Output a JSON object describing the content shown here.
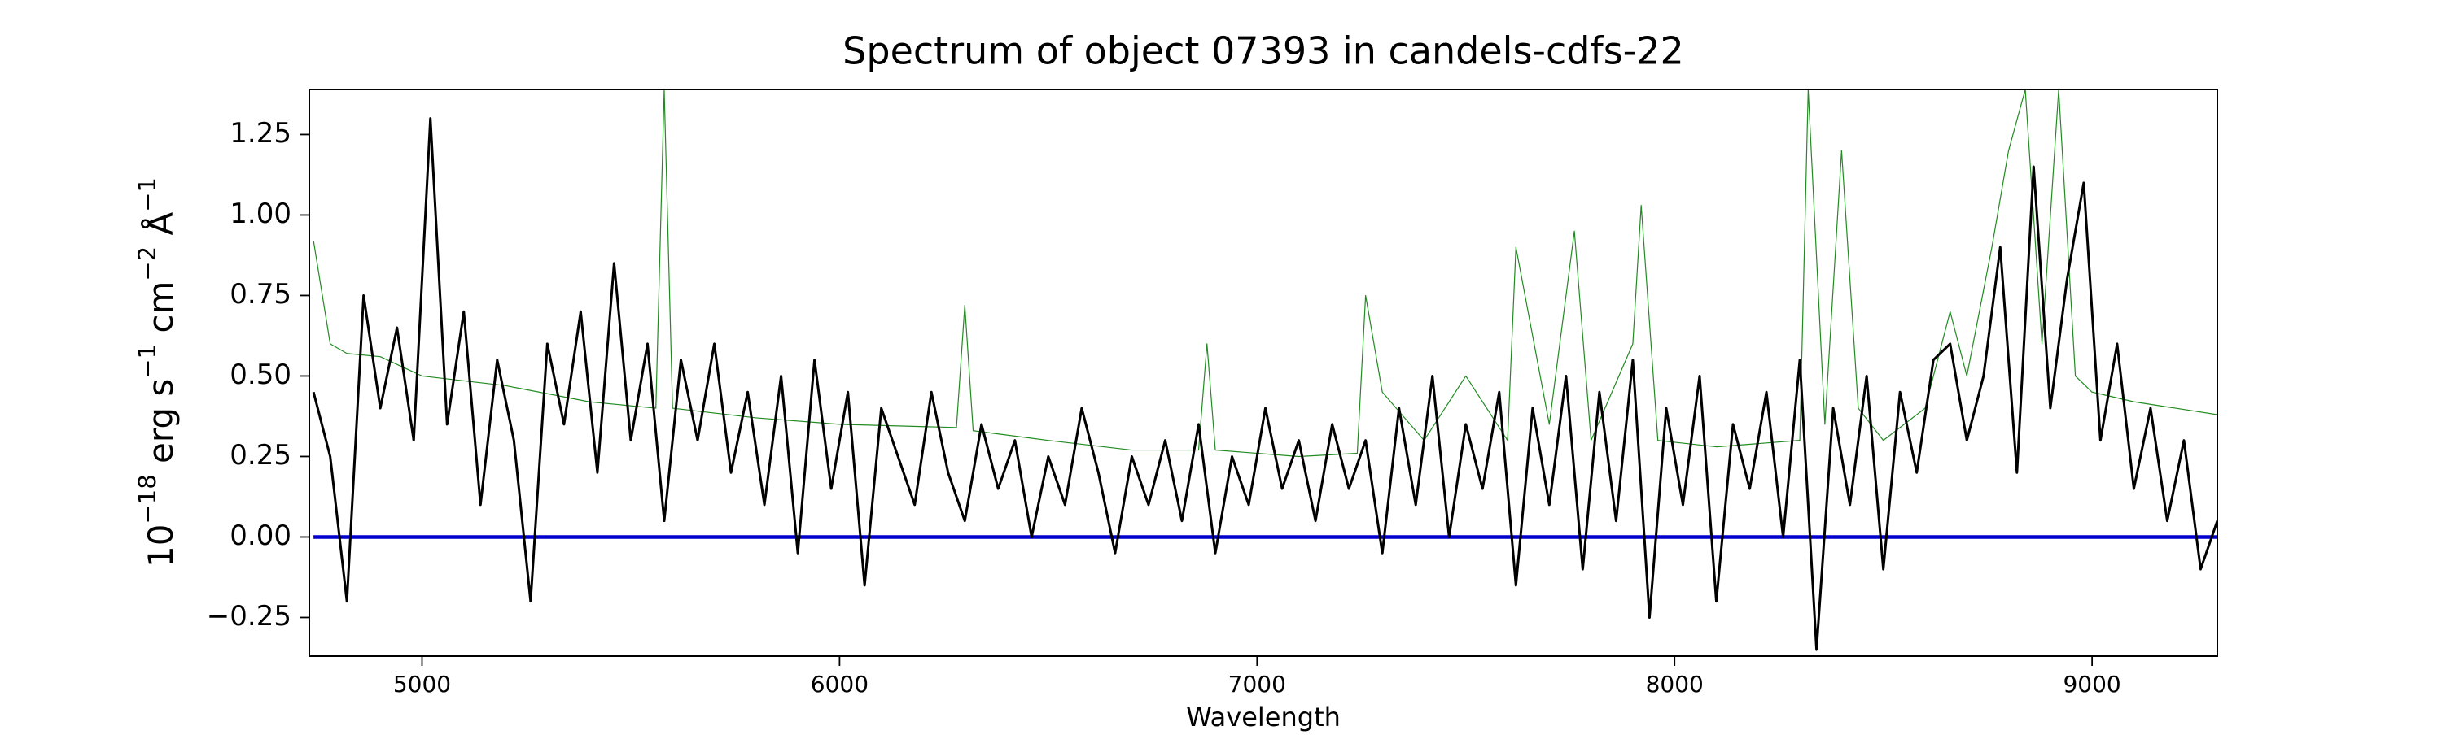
{
  "chart_data": {
    "type": "line",
    "title": "Spectrum of object 07393 in candels-cdfs-22",
    "xlabel": "Wavelength",
    "ylabel": [
      "10",
      "−18",
      " erg s",
      "−1",
      " cm",
      "−2",
      " Å",
      "−1"
    ],
    "xlim": [
      4730,
      9300
    ],
    "xticks": [
      5000,
      6000,
      7000,
      8000,
      9000
    ],
    "ylim": [
      -0.37,
      1.39
    ],
    "yticks": [
      {
        "value": -0.25,
        "label": "−0.25"
      },
      {
        "value": 0,
        "label": "0.00"
      },
      0.25,
      {
        "value": 0.5,
        "label": "0.50"
      },
      0.75,
      {
        "value": 1,
        "label": "1.00"
      },
      1.25
    ],
    "series": [
      {
        "color": "#228b22",
        "x": [
          4740,
          4780,
          4820,
          4900,
          5000,
          5200,
          5400,
          5560,
          5580,
          5600,
          5800,
          6000,
          6280,
          6300,
          6320,
          6500,
          6700,
          6860,
          6880,
          6900,
          7100,
          7240,
          7260,
          7300,
          7400,
          7500,
          7600,
          7620,
          7700,
          7760,
          7800,
          7900,
          7920,
          7960,
          8100,
          8300,
          8320,
          8360,
          8400,
          8440,
          8500,
          8600,
          8660,
          8700,
          8760,
          8800,
          8840,
          8880,
          8920,
          8960,
          9000,
          9100,
          9200,
          9300
        ],
        "values": [
          0.92,
          0.6,
          0.57,
          0.56,
          0.5,
          0.47,
          0.42,
          0.4,
          1.39,
          0.4,
          0.37,
          0.35,
          0.34,
          0.72,
          0.33,
          0.3,
          0.27,
          0.27,
          0.6,
          0.27,
          0.25,
          0.26,
          0.75,
          0.45,
          0.3,
          0.5,
          0.3,
          0.9,
          0.35,
          0.95,
          0.3,
          0.6,
          1.03,
          0.3,
          0.28,
          0.3,
          1.39,
          0.35,
          1.2,
          0.4,
          0.3,
          0.4,
          0.7,
          0.5,
          0.9,
          1.2,
          1.39,
          0.6,
          1.39,
          0.5,
          0.45,
          0.42,
          0.4,
          0.38
        ]
      },
      {
        "color": "#0000cd",
        "x": [
          4740,
          9300
        ],
        "values": [
          0,
          0
        ]
      },
      {
        "color": "#000000",
        "x": [
          4740,
          4780,
          4820,
          4860,
          4900,
          4940,
          4980,
          5020,
          5060,
          5100,
          5140,
          5180,
          5220,
          5260,
          5300,
          5340,
          5380,
          5420,
          5460,
          5500,
          5540,
          5580,
          5620,
          5660,
          5700,
          5740,
          5780,
          5820,
          5860,
          5900,
          5940,
          5980,
          6020,
          6060,
          6100,
          6140,
          6180,
          6220,
          6260,
          6300,
          6340,
          6380,
          6420,
          6460,
          6500,
          6540,
          6580,
          6620,
          6660,
          6700,
          6740,
          6780,
          6820,
          6860,
          6900,
          6940,
          6980,
          7020,
          7060,
          7100,
          7140,
          7180,
          7220,
          7260,
          7300,
          7340,
          7380,
          7420,
          7460,
          7500,
          7540,
          7580,
          7620,
          7660,
          7700,
          7740,
          7780,
          7820,
          7860,
          7900,
          7940,
          7980,
          8020,
          8060,
          8100,
          8140,
          8180,
          8220,
          8260,
          8300,
          8340,
          8380,
          8420,
          8460,
          8500,
          8540,
          8580,
          8620,
          8660,
          8700,
          8740,
          8780,
          8820,
          8860,
          8900,
          8940,
          8980,
          9020,
          9060,
          9100,
          9140,
          9180,
          9220,
          9260,
          9300
        ],
        "values": [
          0.45,
          0.25,
          -0.2,
          0.75,
          0.4,
          0.65,
          0.3,
          1.3,
          0.35,
          0.7,
          0.1,
          0.55,
          0.3,
          -0.2,
          0.6,
          0.35,
          0.7,
          0.2,
          0.85,
          0.3,
          0.6,
          0.05,
          0.55,
          0.3,
          0.6,
          0.2,
          0.45,
          0.1,
          0.5,
          -0.05,
          0.55,
          0.15,
          0.45,
          -0.15,
          0.4,
          0.25,
          0.1,
          0.45,
          0.2,
          0.05,
          0.35,
          0.15,
          0.3,
          0.0,
          0.25,
          0.1,
          0.4,
          0.2,
          -0.05,
          0.25,
          0.1,
          0.3,
          0.05,
          0.35,
          -0.05,
          0.25,
          0.1,
          0.4,
          0.15,
          0.3,
          0.05,
          0.35,
          0.15,
          0.3,
          -0.05,
          0.4,
          0.1,
          0.5,
          0.0,
          0.35,
          0.15,
          0.45,
          -0.15,
          0.4,
          0.1,
          0.5,
          -0.1,
          0.45,
          0.05,
          0.55,
          -0.25,
          0.4,
          0.1,
          0.5,
          -0.2,
          0.35,
          0.15,
          0.45,
          0.0,
          0.55,
          -0.35,
          0.4,
          0.1,
          0.5,
          -0.1,
          0.45,
          0.2,
          0.55,
          0.6,
          0.3,
          0.5,
          0.9,
          0.2,
          1.15,
          0.4,
          0.8,
          1.1,
          0.3,
          0.6,
          0.15,
          0.4,
          0.05,
          0.3,
          -0.1,
          0.05
        ]
      }
    ]
  }
}
